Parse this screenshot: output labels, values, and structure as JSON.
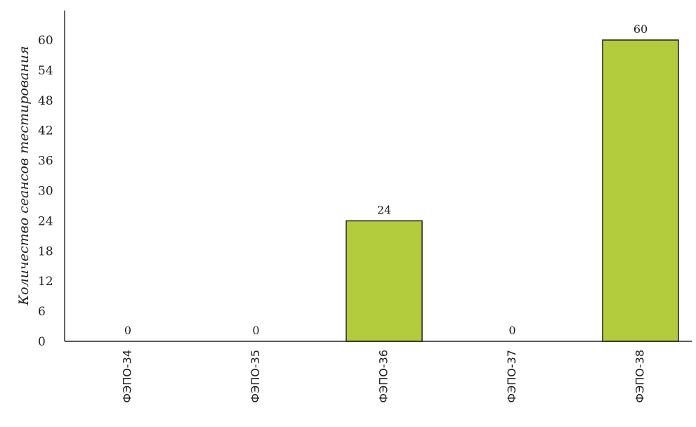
{
  "chart_data": {
    "type": "bar",
    "categories": [
      "ФЭПО-34",
      "ФЭПО-35",
      "ФЭПО-36",
      "ФЭПО-37",
      "ФЭПО-38"
    ],
    "values": [
      0,
      0,
      24,
      0,
      60
    ],
    "data_labels": [
      "0",
      "0",
      "24",
      "0",
      "60"
    ],
    "title": "",
    "xlabel": "",
    "ylabel": "Количество сеансов тестирования",
    "ylim": [
      0,
      66
    ],
    "yticks": [
      0,
      6,
      12,
      18,
      24,
      30,
      36,
      42,
      48,
      54,
      60
    ],
    "grid": false,
    "legend": "none",
    "bar_color": "#b3cc3e",
    "bar_edge_color": "#2a2a2a",
    "axis_color": "#222222"
  }
}
